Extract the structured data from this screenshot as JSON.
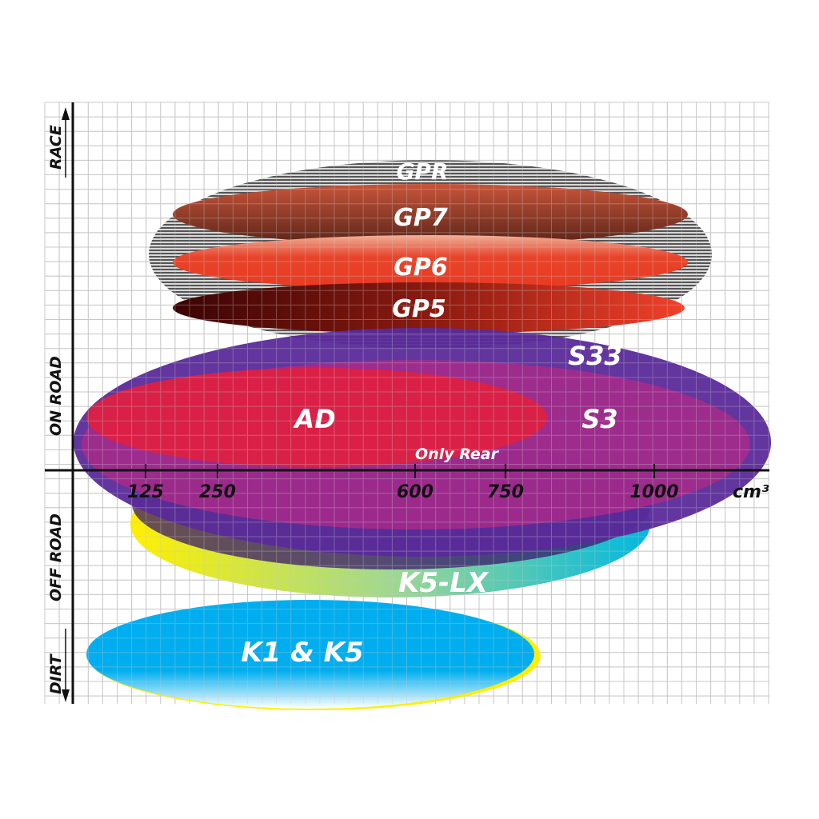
{
  "axes": {
    "x_unit": "cm³",
    "x_ticks": [
      "125",
      "250",
      "600",
      "750",
      "1000"
    ],
    "y_labels": {
      "race": "RACE",
      "on_road": "ON ROAD",
      "off_road": "OFF ROAD",
      "dirt": "DIRT"
    }
  },
  "regions": {
    "gpr": "GPR",
    "gp7": "GP7",
    "gp6": "GP6",
    "gp5": "GP5",
    "s33": "S33",
    "s3": "S3",
    "ad": "AD",
    "only_rear": "Only Rear",
    "k5lx": "K5-LX",
    "k1k5": "K1 & K5"
  },
  "colors": {
    "grid": "#c8c8c8",
    "gpr": "#9a9a9a",
    "gp7": "#8a3a28",
    "gp6": "#e8442a",
    "gp5": "#5a0a0a",
    "s33": "#5a2a9a",
    "s3": "#a02a8a",
    "ad": "#e02040",
    "k5lx": "#20b8c8",
    "k1k5": "#00aeef"
  }
}
